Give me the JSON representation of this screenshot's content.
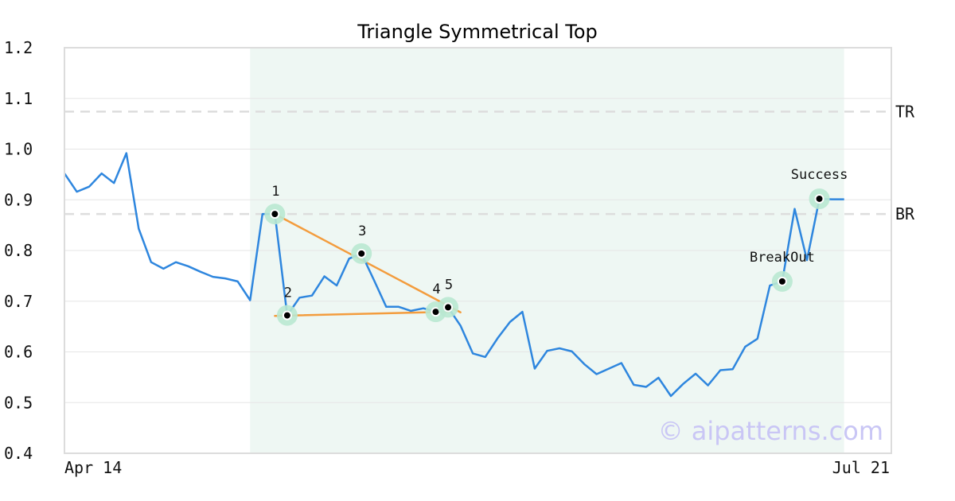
{
  "chart_data": {
    "type": "line",
    "title": "Triangle Symmetrical Top",
    "xlabel": "",
    "ylabel": "",
    "x_tick_labels": [
      "Apr 14",
      "Jul 21"
    ],
    "ylim": [
      0.4,
      1.2
    ],
    "y_ticks": [
      "0.4",
      "0.5",
      "0.6",
      "0.7",
      "0.8",
      "0.9",
      "1.0",
      "1.1",
      "1.2"
    ],
    "grid": "horizontal",
    "series": [
      {
        "color": "#2e86de",
        "values": [
          0.952,
          0.916,
          0.926,
          0.952,
          0.933,
          0.992,
          0.843,
          0.777,
          0.764,
          0.777,
          0.769,
          0.758,
          0.748,
          0.745,
          0.739,
          0.702,
          0.872,
          0.872,
          0.672,
          0.707,
          0.711,
          0.749,
          0.731,
          0.784,
          0.794,
          0.742,
          0.689,
          0.689,
          0.681,
          0.686,
          0.679,
          0.688,
          0.652,
          0.597,
          0.59,
          0.627,
          0.659,
          0.679,
          0.567,
          0.602,
          0.607,
          0.601,
          0.576,
          0.556,
          0.567,
          0.578,
          0.535,
          0.531,
          0.549,
          0.513,
          0.537,
          0.557,
          0.534,
          0.564,
          0.566,
          0.61,
          0.626,
          0.731,
          0.739,
          0.882,
          0.781,
          0.902,
          0.901,
          0.901
        ]
      }
    ],
    "shaded_range": {
      "start_index": 15,
      "end_index": 63,
      "color": "#eef7f3"
    },
    "reference_lines": [
      {
        "label": "TR",
        "value": 1.074
      },
      {
        "label": "BR",
        "value": 0.872
      }
    ],
    "pattern_points": [
      {
        "label": "1",
        "index": 17,
        "value": 0.872
      },
      {
        "label": "2",
        "index": 18,
        "value": 0.672
      },
      {
        "label": "3",
        "index": 24,
        "value": 0.794
      },
      {
        "label": "4",
        "index": 30,
        "value": 0.679
      },
      {
        "label": "5",
        "index": 31,
        "value": 0.688
      }
    ],
    "trend_lines": [
      {
        "color": "#f39c3d",
        "from": {
          "x": 17,
          "y": 0.872
        },
        "to": {
          "x": 32,
          "y": 0.678
        }
      },
      {
        "color": "#f39c3d",
        "from": {
          "x": 17,
          "y": 0.671
        },
        "to": {
          "x": 31,
          "y": 0.679
        }
      }
    ],
    "annotations": [
      {
        "label": "BreakOut",
        "index": 58,
        "value": 0.739
      },
      {
        "label": "Success",
        "index": 61,
        "value": 0.902
      }
    ],
    "watermark": "© aipatterns.com"
  }
}
